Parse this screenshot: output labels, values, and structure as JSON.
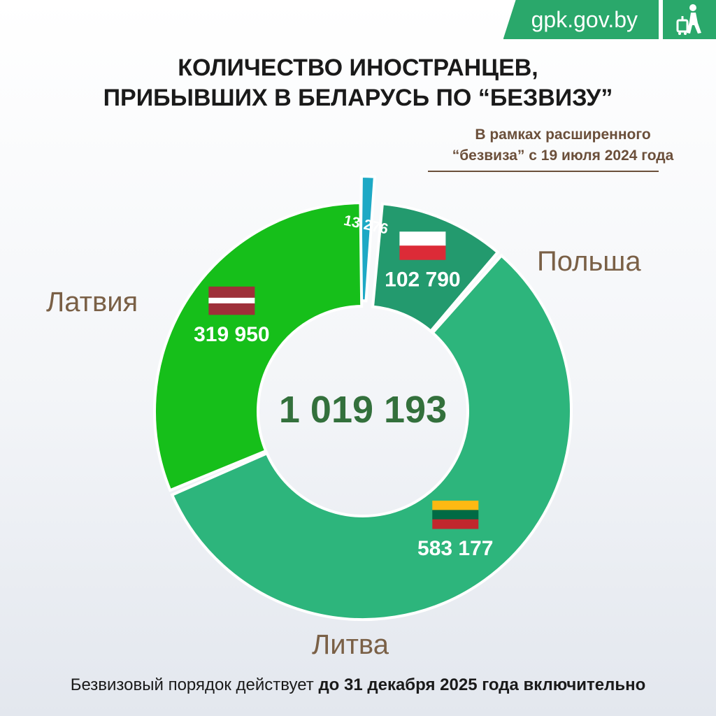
{
  "brand": {
    "site": "gpk.gov.by",
    "logo_icon": "traveler-with-suitcase-icon"
  },
  "title": {
    "line1": "КОЛИЧЕСТВО ИНОСТРАНЦЕВ,",
    "line2": "ПРИБЫВШИХ В БЕЛАРУСЬ ПО “БЕЗВИЗУ”"
  },
  "annotation": {
    "line1": "В рамках расширенного",
    "line2": "“безвиза” с 19 июля 2024 года"
  },
  "footer": {
    "normal": "Безвизовый порядок действует",
    "bold": "до 31 декабря 2025 года включительно"
  },
  "chart_data": {
    "type": "pie",
    "donut": true,
    "total_label": "1 019 193",
    "slices": [
      {
        "name": "",
        "value": 13276,
        "label": "13 276",
        "color": "#1ea9c5",
        "flag": ""
      },
      {
        "name": "Польша",
        "value": 102790,
        "label": "102 790",
        "color": "#239a6e",
        "flag": "poland-flag-icon"
      },
      {
        "name": "Литва",
        "value": 583177,
        "label": "583 177",
        "color": "#2db57c",
        "flag": "lithuania-flag-icon"
      },
      {
        "name": "Латвия",
        "value": 319950,
        "label": "319 950",
        "color": "#16bf1a",
        "flag": "latvia-flag-icon"
      }
    ],
    "legend": "labels outside slices"
  },
  "colors": {
    "brand_green": "#2aa86b",
    "label_brown": "#7a6046",
    "center_total": "#33703c"
  }
}
